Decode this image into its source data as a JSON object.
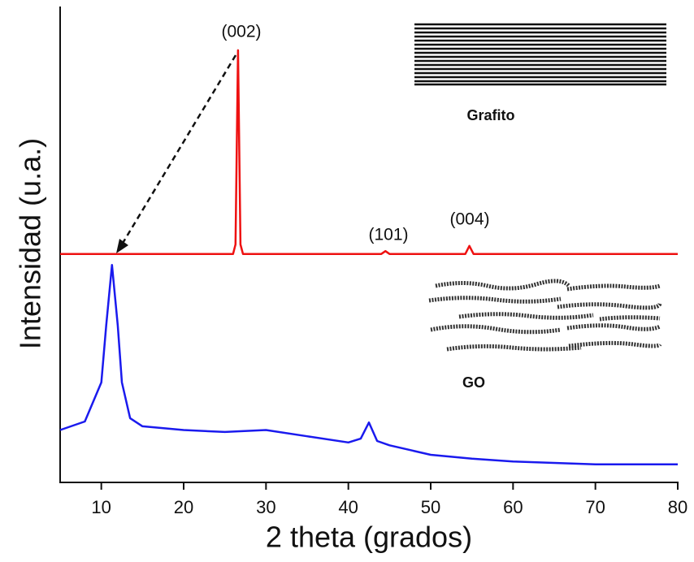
{
  "chart_data": {
    "type": "line",
    "x_label": "2 theta (grados)",
    "y_label": "Intensidad (u.a.)",
    "xlim": [
      5,
      80
    ],
    "xticks": [
      10,
      20,
      30,
      40,
      50,
      60,
      70,
      80
    ],
    "ylim": [
      0,
      100
    ],
    "series": [
      {
        "color": "#ee1111",
        "x": [
          5,
          26,
          26.3,
          26.6,
          26.9,
          27.2,
          44,
          44.5,
          45,
          54.2,
          54.7,
          55.2,
          80
        ],
        "values": [
          48,
          48,
          50,
          90.8,
          50,
          48,
          48,
          48.6,
          48,
          48,
          49.7,
          48,
          48
        ]
      },
      {
        "color": "#1a1aee",
        "x": [
          5,
          8,
          10,
          10.6,
          11.3,
          12,
          12.5,
          13.5,
          15,
          20,
          25,
          30,
          35,
          40,
          41.5,
          42.5,
          43.5,
          45,
          50,
          55,
          60,
          70,
          80
        ],
        "values": [
          11,
          12.8,
          21,
          33,
          45.7,
          33,
          21,
          13.5,
          11.8,
          11,
          10.6,
          11,
          9.7,
          8.4,
          9.2,
          12.6,
          8.7,
          7.8,
          5.8,
          5,
          4.4,
          3.8,
          3.8
        ]
      }
    ],
    "annotations": [
      "(002)",
      "(101)",
      "(004)",
      "Grafito",
      "GO"
    ]
  }
}
